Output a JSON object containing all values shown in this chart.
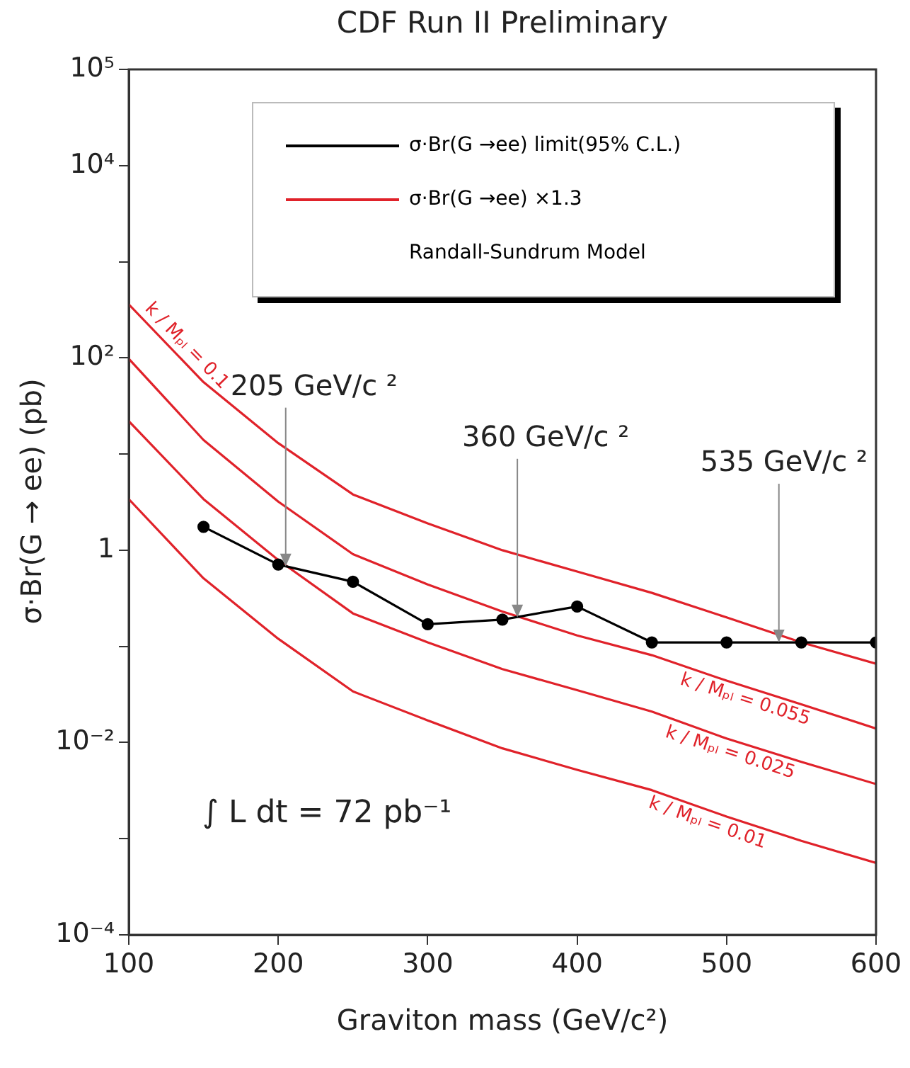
{
  "chart_data": {
    "type": "line",
    "title": "CDF Run II Preliminary",
    "xlabel": "Graviton mass (GeV/c²)",
    "ylabel": "σ·Br(G → ee) (pb)",
    "legend_title": "Randall-Sundrum Model",
    "legend": "top",
    "log": "y",
    "grid": false,
    "x": [
      100,
      150,
      200,
      250,
      300,
      350,
      400,
      450,
      500,
      550,
      600
    ],
    "xlim": [
      100,
      600
    ],
    "xticks": [
      100,
      200,
      300,
      400,
      500,
      600
    ],
    "ylim": [
      0.0001,
      100000
    ],
    "yticks": [
      {
        "value": 0.0001,
        "label": "10⁻⁴"
      },
      {
        "value": 0.001,
        "label": null
      },
      {
        "value": 0.01,
        "label": "10⁻²"
      },
      {
        "value": 0.1,
        "label": null
      },
      {
        "value": 1,
        "label": "1"
      },
      {
        "value": 10,
        "label": null
      },
      {
        "value": 100,
        "label": "10²"
      },
      {
        "value": 1000,
        "label": null
      },
      {
        "value": 10000,
        "label": "10⁴"
      },
      {
        "value": 100000,
        "label": "10⁵"
      }
    ],
    "annotations": [
      "σ·Br(G →ee) ×1.3",
      "∫ L dt = 72 pb⁻¹",
      {
        "text": "205 GeV/c ²",
        "x": 205,
        "y": 0.68
      },
      {
        "text": "360 GeV/c ²",
        "x": 360,
        "y": 0.2
      },
      {
        "text": "535 GeV/c ²",
        "x": 535,
        "y": 0.11
      }
    ],
    "series": [
      {
        "name": "σ·Br(G →ee) limit(95% C.L.)",
        "color": "#000000",
        "marker": "circle",
        "x": [
          150,
          200,
          250,
          300,
          350,
          400,
          450,
          500,
          550,
          600
        ],
        "values": [
          1.75,
          0.71,
          0.47,
          0.17,
          0.19,
          0.26,
          0.11,
          0.11,
          0.11,
          0.11
        ]
      },
      {
        "name": "k / Mₚₗ = 0.1",
        "color": "#e0222a",
        "marker": "none",
        "values": [
          360,
          56,
          13,
          3.8,
          1.9,
          1.0,
          0.6,
          0.36,
          0.2,
          0.11,
          0.066
        ]
      },
      {
        "name": "k / Mₚₗ = 0.055",
        "color": "#e0222a",
        "marker": "none",
        "values": [
          98,
          14,
          3.2,
          0.91,
          0.44,
          0.23,
          0.13,
          0.081,
          0.044,
          0.025,
          0.014
        ]
      },
      {
        "name": "k / Mₚₗ = 0.025",
        "color": "#e0222a",
        "marker": "none",
        "values": [
          22,
          3.4,
          0.79,
          0.22,
          0.11,
          0.058,
          0.035,
          0.021,
          0.011,
          0.0063,
          0.0037
        ]
      },
      {
        "name": "k / Mₚₗ = 0.01",
        "color": "#e0222a",
        "marker": "none",
        "values": [
          3.4,
          0.51,
          0.12,
          0.034,
          0.017,
          0.0087,
          0.0052,
          0.0032,
          0.0017,
          0.00095,
          0.00056
        ]
      }
    ]
  }
}
